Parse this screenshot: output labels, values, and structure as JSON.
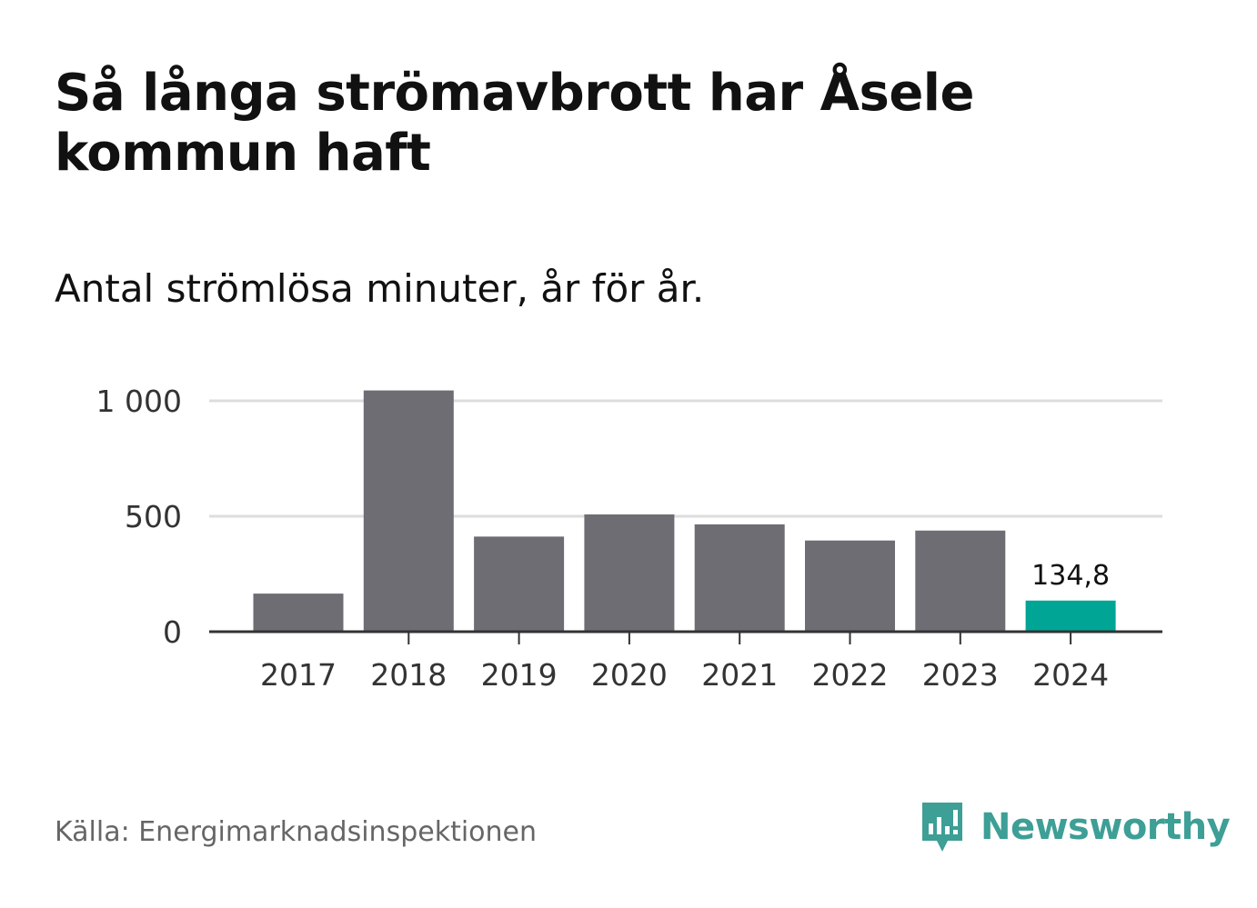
{
  "header": {
    "title": "Så långa strömavbrott har Åsele kommun haft",
    "subtitle": "Antal strömlösa minuter, år för år."
  },
  "footer": {
    "source": "Källa: Energimarknadsinspektionen",
    "brand": "Newsworthy"
  },
  "colors": {
    "bar": "#6e6d73",
    "highlight": "#00a596",
    "grid": "#dddddd",
    "axis": "#333333",
    "brand": "#3d9f96"
  },
  "chart_data": {
    "type": "bar",
    "title": "Så långa strömavbrott har Åsele kommun haft",
    "subtitle": "Antal strömlösa minuter, år för år.",
    "categories": [
      "2017",
      "2018",
      "2019",
      "2020",
      "2021",
      "2022",
      "2023",
      "2024"
    ],
    "values": [
      165,
      1045,
      412,
      508,
      465,
      395,
      438,
      134.8
    ],
    "highlight_index": 7,
    "highlight_label": "134,8",
    "yticks": [
      0,
      500,
      1000
    ],
    "ytick_labels": [
      "0",
      "500",
      "1 000"
    ],
    "ylim": [
      0,
      1000
    ],
    "xlabel": "",
    "ylabel": "",
    "grid": true
  }
}
